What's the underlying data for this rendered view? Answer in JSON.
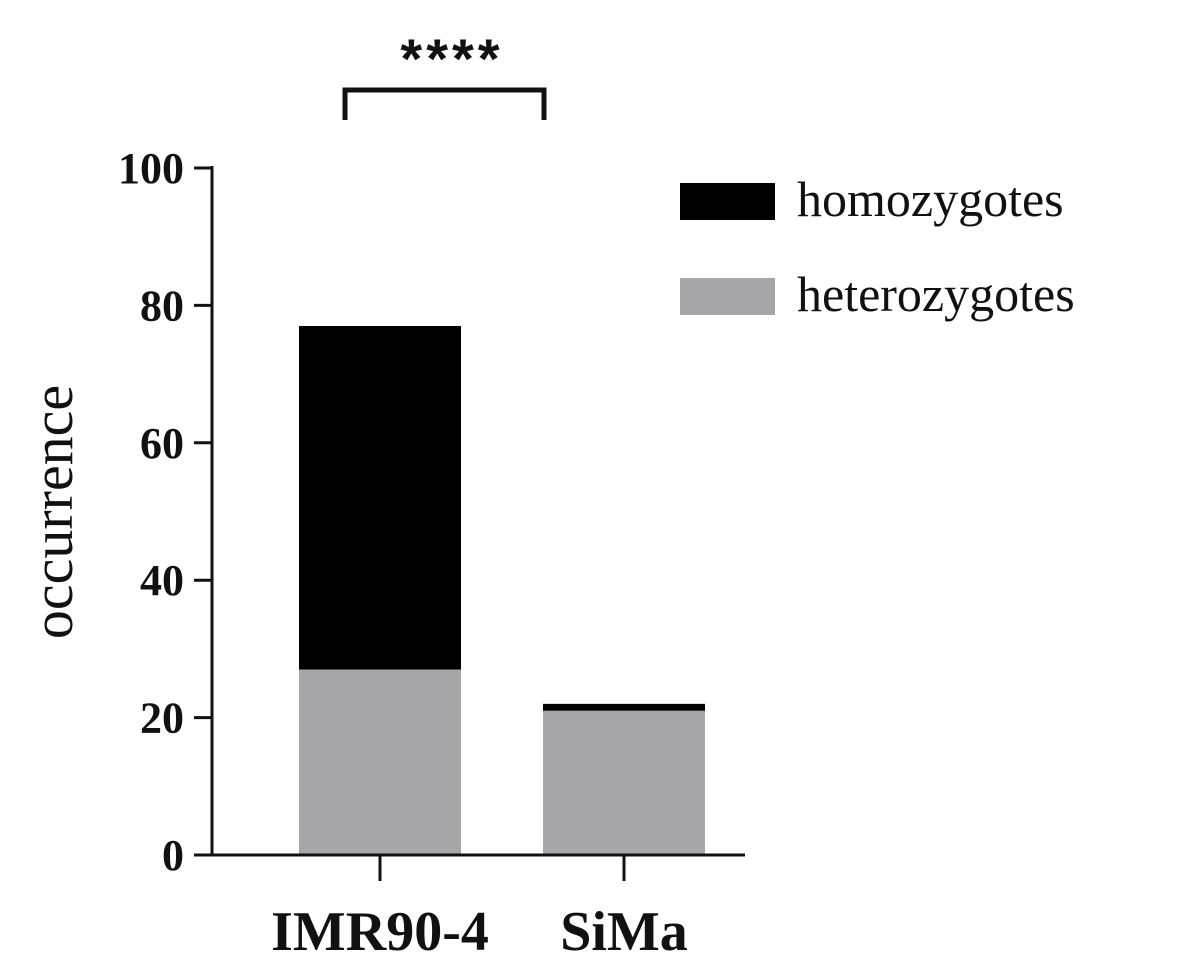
{
  "chart_data": {
    "type": "bar",
    "stacked": true,
    "categories": [
      "IMR90-4",
      "SiMa"
    ],
    "series": [
      {
        "name": "heterozygotes",
        "values": [
          27,
          21
        ],
        "color": "#a6a6a8"
      },
      {
        "name": "homozygotes",
        "values": [
          50,
          1
        ],
        "color": "#000000"
      }
    ],
    "xlabel": "",
    "ylabel": "occurrence",
    "ylim": [
      0,
      100
    ],
    "yticks": [
      0,
      20,
      40,
      60,
      80,
      100
    ],
    "legend": {
      "position": "top-right",
      "entries": [
        "homozygotes",
        "heterozygotes"
      ]
    },
    "grid": false,
    "annotations": [
      {
        "text": "****",
        "type": "significance-bracket",
        "between": [
          "IMR90-4",
          "SiMa"
        ]
      }
    ]
  }
}
